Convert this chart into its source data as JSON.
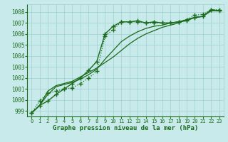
{
  "title": "",
  "xlabel": "Graphe pression niveau de la mer (hPa)",
  "bg_color": "#c8eaea",
  "grid_color": "#9ecfcf",
  "line_color": "#1a6b1a",
  "xlim": [
    -0.5,
    23.5
  ],
  "ylim": [
    998.5,
    1008.7
  ],
  "yticks": [
    999,
    1000,
    1001,
    1002,
    1003,
    1004,
    1005,
    1006,
    1007,
    1008
  ],
  "xticks": [
    0,
    1,
    2,
    3,
    4,
    5,
    6,
    7,
    8,
    9,
    10,
    11,
    12,
    13,
    14,
    15,
    16,
    17,
    18,
    19,
    20,
    21,
    22,
    23
  ],
  "series": [
    {
      "x": [
        0,
        1,
        2,
        3,
        4,
        5,
        6,
        7,
        8,
        9,
        10,
        11,
        12,
        13,
        14,
        15,
        16,
        17,
        18,
        19,
        20,
        21,
        22,
        23
      ],
      "y": [
        998.8,
        999.5,
        999.9,
        1000.5,
        1001.0,
        1001.5,
        1002.0,
        1002.7,
        1003.5,
        1006.0,
        1006.7,
        1007.1,
        1007.1,
        1007.2,
        1007.0,
        1007.1,
        1007.0,
        1007.0,
        1007.1,
        1007.2,
        1007.5,
        1007.6,
        1008.2,
        1008.1
      ],
      "style": "-",
      "marker": "+",
      "color": "#1a6b1a",
      "lw": 1.0,
      "ms": 4,
      "mew": 1.0
    },
    {
      "x": [
        0,
        1,
        2,
        3,
        4,
        5,
        6,
        7,
        8,
        9,
        10,
        11,
        12,
        13,
        14,
        15,
        16,
        17,
        18,
        19,
        20,
        21,
        22,
        23
      ],
      "y": [
        998.8,
        999.5,
        1000.8,
        1001.3,
        1001.5,
        1001.7,
        1002.1,
        1002.5,
        1002.9,
        1003.4,
        1003.9,
        1004.5,
        1005.1,
        1005.6,
        1006.0,
        1006.3,
        1006.6,
        1006.8,
        1007.0,
        1007.3,
        1007.5,
        1007.6,
        1008.2,
        1008.1
      ],
      "style": "-",
      "marker": "None",
      "color": "#1a6b1a",
      "lw": 0.9,
      "ms": 0,
      "mew": 0
    },
    {
      "x": [
        0,
        1,
        2,
        3,
        4,
        5,
        6,
        7,
        8,
        9,
        10,
        11,
        12,
        13,
        14,
        15,
        16,
        17,
        18,
        19,
        20,
        21,
        22,
        23
      ],
      "y": [
        998.8,
        999.5,
        1000.5,
        1001.2,
        1001.4,
        1001.6,
        1001.9,
        1002.3,
        1002.8,
        1003.7,
        1004.5,
        1005.3,
        1005.8,
        1006.2,
        1006.5,
        1006.7,
        1006.8,
        1007.0,
        1007.1,
        1007.3,
        1007.5,
        1007.6,
        1008.1,
        1008.1
      ],
      "style": "-",
      "marker": "None",
      "color": "#1a6b1a",
      "lw": 0.9,
      "ms": 0,
      "mew": 0
    },
    {
      "x": [
        0,
        1,
        2,
        3,
        4,
        5,
        6,
        7,
        8,
        9,
        10,
        11,
        12,
        13,
        14,
        15,
        16,
        17,
        18,
        19,
        20,
        21,
        22,
        23
      ],
      "y": [
        998.8,
        999.9,
        1000.6,
        1000.8,
        1001.0,
        1001.1,
        1001.5,
        1002.0,
        1002.6,
        1005.8,
        1006.4,
        1007.1,
        1007.1,
        1007.1,
        1007.0,
        1007.0,
        1007.0,
        1007.0,
        1007.1,
        1007.3,
        1007.7,
        1007.8,
        1008.2,
        1008.2
      ],
      "style": ":",
      "marker": "+",
      "color": "#1a6b1a",
      "lw": 0.9,
      "ms": 4,
      "mew": 1.0
    }
  ]
}
